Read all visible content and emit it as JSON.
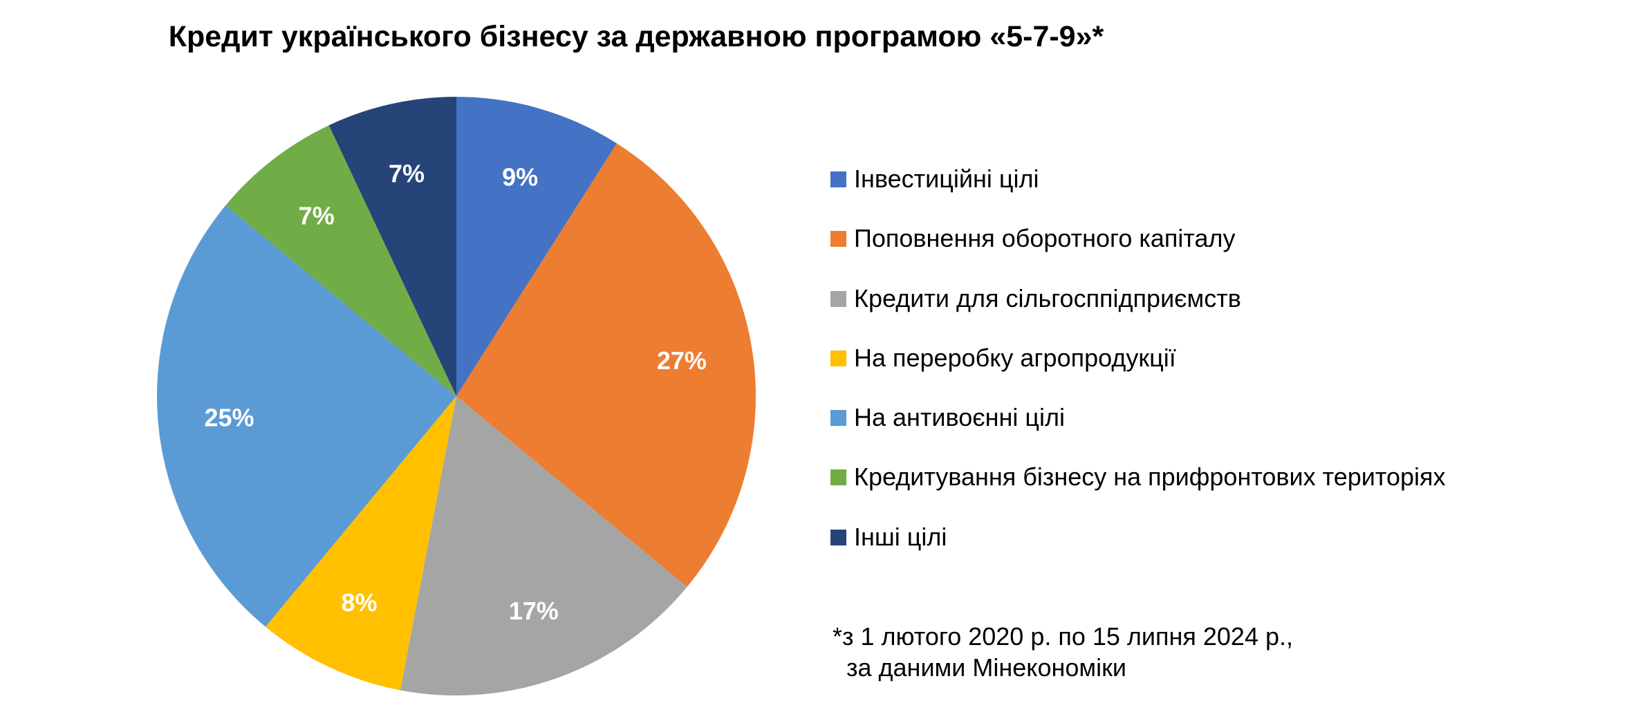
{
  "chart_data": {
    "type": "pie",
    "title": "Кредит українського бізнесу за державною програмою «5-7-9»*",
    "slices": [
      {
        "label": "Інвестиційні цілі",
        "value": 9,
        "display": "9%",
        "color": "#4472C4"
      },
      {
        "label": "Поповнення оборотного капіталу",
        "value": 27,
        "display": "27%",
        "color": "#ED7D31"
      },
      {
        "label": "Кредити для сільгосппідприємств",
        "value": 17,
        "display": "17%",
        "color": "#A5A5A5"
      },
      {
        "label": "На переробку агропродукції",
        "value": 8,
        "display": "8%",
        "color": "#FFC000"
      },
      {
        "label": "На антивоєнні цілі",
        "value": 25,
        "display": "25%",
        "color": "#5B9BD5"
      },
      {
        "label": "Кредитування бізнесу на прифронтових територіях",
        "value": 7,
        "display": "7%",
        "color": "#70AD47"
      },
      {
        "label": "Інші цілі",
        "value": 7,
        "display": "7%",
        "color": "#264478"
      }
    ],
    "legend_position": "right",
    "start_angle": "12 o'clock",
    "direction": "clockwise"
  },
  "footnote": {
    "line1": "*з 1 лютого 2020 р. по 15 липня 2024 р.,",
    "line2": "  за даними Мінекономіки"
  }
}
